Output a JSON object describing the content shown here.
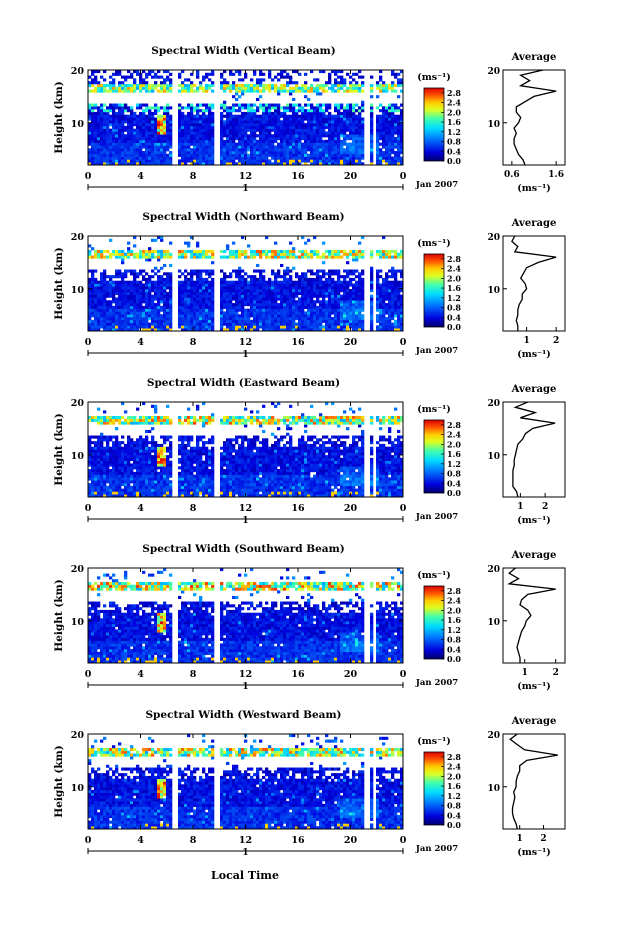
{
  "shared": {
    "x_ticks": [
      "0",
      "4",
      "8",
      "12",
      "16",
      "20",
      "0"
    ],
    "date_label": "Jan 2007",
    "day_marker": "1",
    "y_label": "Height (km)",
    "y_ticks": [
      "20",
      "10"
    ],
    "colorbar_unit": "(ms⁻¹)",
    "colorbar_ticks": [
      "2.8",
      "2.4",
      "2.0",
      "1.6",
      "1.2",
      "0.8",
      "0.4",
      "0.0"
    ],
    "avg_title": "Average",
    "avg_unit": "(ms⁻¹)",
    "x_axis_title": "Local Time",
    "colors": {
      "low": "#0000aa",
      "mid": "#00ccff",
      "midhigh": "#ffff00",
      "high": "#ff0000",
      "background": "#ffffff"
    }
  },
  "chart_data": [
    {
      "type": "heatmap",
      "title": "Spectral Width (Vertical Beam)",
      "xlabel": "Local Time",
      "ylabel": "Height (km)",
      "xlim": [
        0,
        24
      ],
      "ylim": [
        2,
        20
      ],
      "zlim": [
        0.0,
        3.0
      ],
      "colorbar_label": "(ms⁻¹)",
      "profile": {
        "title": "Average",
        "xlabel": "(ms⁻¹)",
        "x_ticks": [
          "0.6",
          "1.6"
        ],
        "xlim": [
          0.4,
          1.8
        ],
        "height": [
          2,
          3,
          4,
          5,
          6,
          7,
          8,
          9,
          10,
          11,
          12,
          13,
          14,
          15,
          16,
          17,
          18,
          19,
          20
        ],
        "value": [
          0.9,
          0.85,
          0.75,
          0.7,
          0.65,
          0.65,
          0.7,
          0.65,
          0.75,
          0.8,
          0.7,
          0.7,
          0.9,
          1.1,
          1.6,
          0.8,
          1.0,
          0.8,
          1.3
        ]
      }
    },
    {
      "type": "heatmap",
      "title": "Spectral Width (Northward Beam)",
      "xlabel": "Local Time",
      "ylabel": "Height (km)",
      "xlim": [
        0,
        24
      ],
      "ylim": [
        2,
        20
      ],
      "zlim": [
        0.0,
        3.0
      ],
      "colorbar_label": "(ms⁻¹)",
      "profile": {
        "title": "Average",
        "xlabel": "(ms⁻¹)",
        "x_ticks": [
          "1",
          "2"
        ],
        "xlim": [
          0.2,
          2.3
        ],
        "height": [
          2,
          3,
          4,
          5,
          6,
          7,
          8,
          9,
          10,
          11,
          12,
          13,
          14,
          15,
          16,
          17,
          18,
          19,
          20
        ],
        "value": [
          0.7,
          0.7,
          0.65,
          0.7,
          0.7,
          0.75,
          0.85,
          0.85,
          1.0,
          0.95,
          0.8,
          0.9,
          1.0,
          1.4,
          2.0,
          0.6,
          0.7,
          0.5,
          0.6
        ]
      }
    },
    {
      "type": "heatmap",
      "title": "Spectral Width (Eastward Beam)",
      "xlabel": "Local Time",
      "ylabel": "Height (km)",
      "xlim": [
        0,
        24
      ],
      "ylim": [
        2,
        20
      ],
      "zlim": [
        0.0,
        3.0
      ],
      "colorbar_label": "(ms⁻¹)",
      "profile": {
        "title": "Average",
        "xlabel": "(ms⁻¹)",
        "x_ticks": [
          "1",
          "2"
        ],
        "xlim": [
          0.3,
          2.8
        ],
        "height": [
          2,
          3,
          4,
          5,
          6,
          7,
          8,
          9,
          10,
          11,
          12,
          13,
          14,
          15,
          16,
          17,
          18,
          19,
          20
        ],
        "value": [
          0.9,
          0.85,
          0.7,
          0.7,
          0.7,
          0.7,
          0.75,
          0.75,
          0.8,
          0.85,
          0.9,
          1.1,
          1.2,
          1.5,
          2.4,
          1.0,
          1.6,
          0.8,
          1.3
        ]
      }
    },
    {
      "type": "heatmap",
      "title": "Spectral Width (Southward Beam)",
      "xlabel": "Local Time",
      "ylabel": "Height (km)",
      "xlim": [
        0,
        24
      ],
      "ylim": [
        2,
        20
      ],
      "zlim": [
        0.0,
        3.0
      ],
      "colorbar_label": "(ms⁻¹)",
      "profile": {
        "title": "Average",
        "xlabel": "(ms⁻¹)",
        "x_ticks": [
          "1",
          "2"
        ],
        "xlim": [
          0.3,
          2.3
        ],
        "height": [
          2,
          3,
          4,
          5,
          6,
          7,
          8,
          9,
          10,
          11,
          12,
          13,
          14,
          15,
          16,
          17,
          18,
          19,
          20
        ],
        "value": [
          0.85,
          0.85,
          0.8,
          0.75,
          0.8,
          0.85,
          0.9,
          1.0,
          1.05,
          1.2,
          1.1,
          0.85,
          0.9,
          1.1,
          2.0,
          0.5,
          0.8,
          0.5,
          0.7
        ]
      }
    },
    {
      "type": "heatmap",
      "title": "Spectral Width (Westward Beam)",
      "xlabel": "Local Time",
      "ylabel": "Height (km)",
      "xlim": [
        0,
        24
      ],
      "ylim": [
        2,
        20
      ],
      "zlim": [
        0.0,
        3.0
      ],
      "colorbar_label": "(ms⁻¹)",
      "profile": {
        "title": "Average",
        "xlabel": "(ms⁻¹)",
        "x_ticks": [
          "1",
          "2"
        ],
        "xlim": [
          0.3,
          2.9
        ],
        "height": [
          2,
          3,
          4,
          5,
          6,
          7,
          8,
          9,
          10,
          11,
          12,
          13,
          14,
          15,
          16,
          17,
          18,
          19,
          20
        ],
        "value": [
          0.9,
          0.85,
          0.75,
          0.7,
          0.7,
          0.75,
          0.8,
          0.75,
          0.85,
          0.85,
          0.9,
          1.0,
          1.0,
          1.3,
          2.6,
          1.2,
          0.9,
          0.6,
          0.9
        ]
      }
    }
  ]
}
